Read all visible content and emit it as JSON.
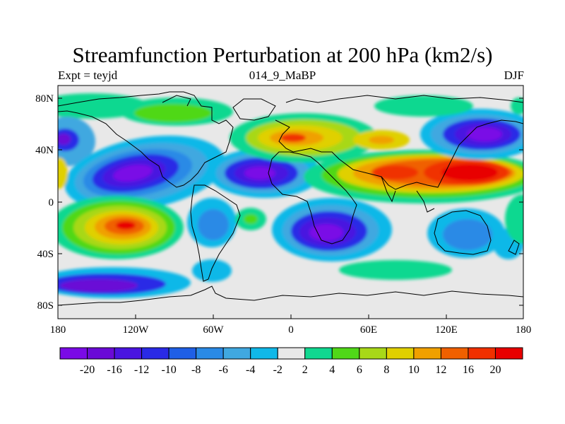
{
  "map": {
    "title": "Streamfunction Perturbation at 200 hPa (km2/s)",
    "left_label": "Expt = teyjd",
    "center_label": "014_9_MaBP",
    "right_label": "DJF",
    "lat_ticks": [
      "80N",
      "40N",
      "0",
      "40S",
      "80S"
    ],
    "lon_ticks": [
      "180",
      "120W",
      "60W",
      "0",
      "60E",
      "120E",
      "180"
    ]
  },
  "colorbar": {
    "labels": [
      "-20",
      "-16",
      "-12",
      "-10",
      "-8",
      "-6",
      "-4",
      "-2",
      "2",
      "4",
      "6",
      "8",
      "10",
      "12",
      "16",
      "20"
    ],
    "colors": [
      "#7a0ae6",
      "#6a0ad6",
      "#4a14e0",
      "#2a2ae6",
      "#1f5fe6",
      "#2a8ae6",
      "#40a8e0",
      "#10b8e8",
      "#e8e8e8",
      "#10d890",
      "#50d818",
      "#a8d818",
      "#e0d000",
      "#f0a000",
      "#f06000",
      "#f03000",
      "#e80000"
    ]
  }
}
